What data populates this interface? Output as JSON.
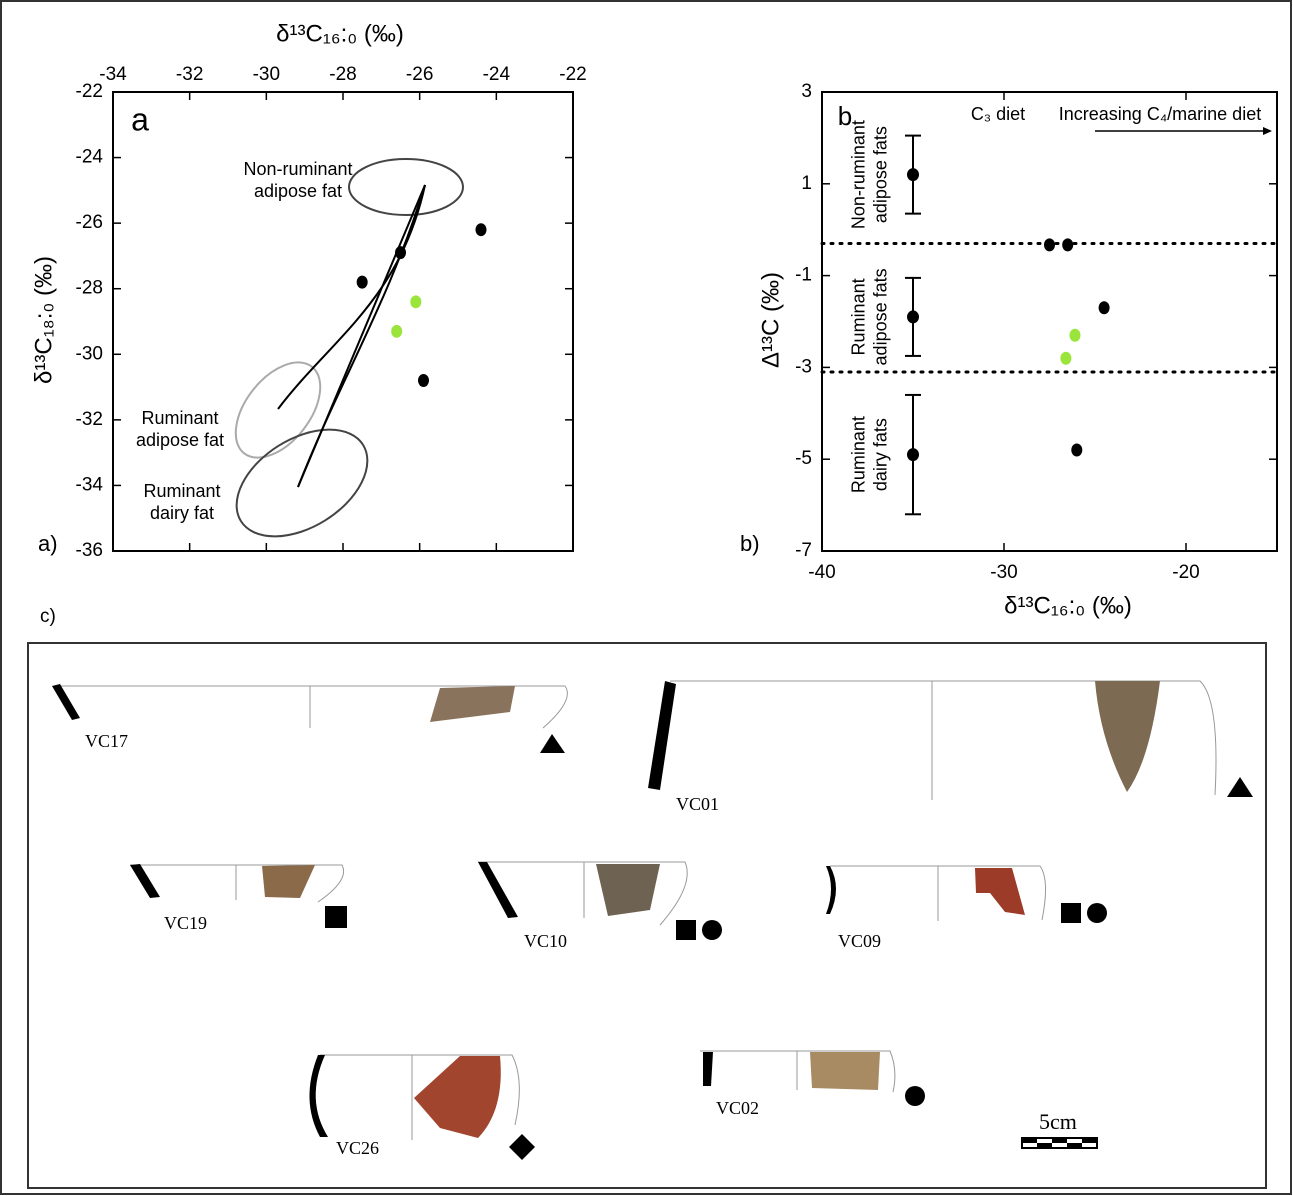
{
  "chart_data": [
    {
      "type": "scatter",
      "panel_label": "a)",
      "letter": "a",
      "xlabel": "δ¹³C₁₆:₀ (‰)",
      "ylabel": "δ¹³C₁₈:₀ (‰)",
      "xlim": [
        -34,
        -22
      ],
      "xticks": [
        -34,
        -32,
        -30,
        -28,
        -26,
        -24,
        -22
      ],
      "ylim": [
        -36,
        -22
      ],
      "yticks": [
        -36,
        -34,
        -32,
        -30,
        -28,
        -26,
        -24,
        -22
      ],
      "series": [
        {
          "color": "#000000",
          "x": [
            -27.5,
            -26.5,
            -24.4,
            -25.9
          ],
          "values": [
            -27.8,
            -26.9,
            -26.2,
            -30.8
          ]
        },
        {
          "color": "#9be43c",
          "x": [
            -26.1,
            -26.6
          ],
          "values": [
            -28.4,
            -29.3
          ]
        }
      ],
      "annotations": [
        [
          "Non-ruminant",
          "adipose fat"
        ],
        [
          "Ruminant",
          "adipose fat"
        ],
        [
          "Ruminant",
          "dairy fat"
        ]
      ]
    },
    {
      "type": "scatter",
      "panel_label": "b)",
      "letter": "b",
      "xlabel": "δ¹³C₁₆:₀ (‰)",
      "ylabel": "Δ¹³C (‰)",
      "xlim": [
        -40,
        -15
      ],
      "xticks": [
        -40,
        -30,
        -20
      ],
      "ylim": [
        -7,
        3
      ],
      "yticks": [
        -7,
        -5,
        -3,
        -1,
        1,
        3
      ],
      "hlines": [
        -0.3,
        -3.1
      ],
      "reference": {
        "x": [
          -35,
          -35,
          -35
        ],
        "values": [
          1.2,
          -1.9,
          -4.9
        ],
        "errors": [
          0.85,
          0.85,
          1.3
        ],
        "labels": [
          [
            "Non-ruminant",
            "adipose fats"
          ],
          [
            "Ruminant",
            "adipose fats"
          ],
          [
            "Ruminant",
            "dairy fats"
          ]
        ]
      },
      "series": [
        {
          "color": "#000000",
          "x": [
            -27.5,
            -26.5,
            -24.5,
            -26.0
          ],
          "values": [
            -0.33,
            -0.33,
            -1.7,
            -4.8
          ]
        },
        {
          "color": "#9be43c",
          "x": [
            -26.1,
            -26.6
          ],
          "values": [
            -2.3,
            -2.8
          ]
        }
      ],
      "annotations": [
        "C₃ diet",
        "Increasing C₄/marine diet"
      ]
    }
  ],
  "panel_c": {
    "label": "c)",
    "vessels": [
      "VC17",
      "VC01",
      "VC19",
      "VC10",
      "VC09",
      "VC26",
      "VC02"
    ],
    "scale": "5cm"
  }
}
